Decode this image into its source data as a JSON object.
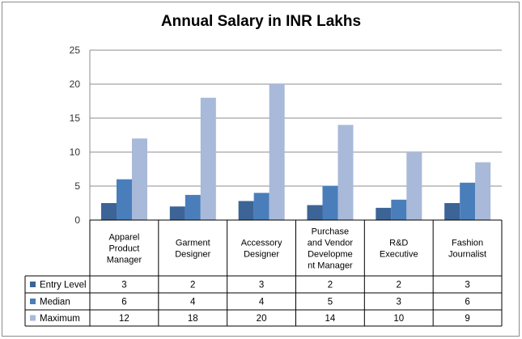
{
  "chart_data": {
    "type": "bar",
    "title": "Annual Salary in INR Lakhs",
    "categories": [
      [
        "Apparel",
        "Product",
        "Manager"
      ],
      [
        "Garment",
        "Designer"
      ],
      [
        "Accessory",
        "Designer"
      ],
      [
        "Purchase",
        "and Vendor",
        "Developme",
        "nt Manager"
      ],
      [
        "R&D",
        "Executive"
      ],
      [
        "Fashion",
        "Journalist"
      ]
    ],
    "series": [
      {
        "name": "Entry Level",
        "color": "#3c6496",
        "values": [
          2.5,
          2,
          2.8,
          2.2,
          1.8,
          2.5
        ],
        "table_values": [
          "3",
          "2",
          "3",
          "2",
          "2",
          "3"
        ]
      },
      {
        "name": "Median",
        "color": "#4a7ebb",
        "values": [
          6,
          3.7,
          4,
          5,
          3,
          5.5
        ],
        "table_values": [
          "6",
          "4",
          "4",
          "5",
          "3",
          "6"
        ]
      },
      {
        "name": "Maximum",
        "color": "#a8b9d9",
        "values": [
          12,
          18,
          20,
          14,
          10,
          8.5
        ],
        "table_values": [
          "12",
          "18",
          "20",
          "14",
          "10",
          "9"
        ]
      }
    ],
    "ylim": [
      0,
      25
    ],
    "yticks": [
      0,
      5,
      10,
      15,
      20,
      25
    ],
    "grid": true,
    "data_table": true
  }
}
